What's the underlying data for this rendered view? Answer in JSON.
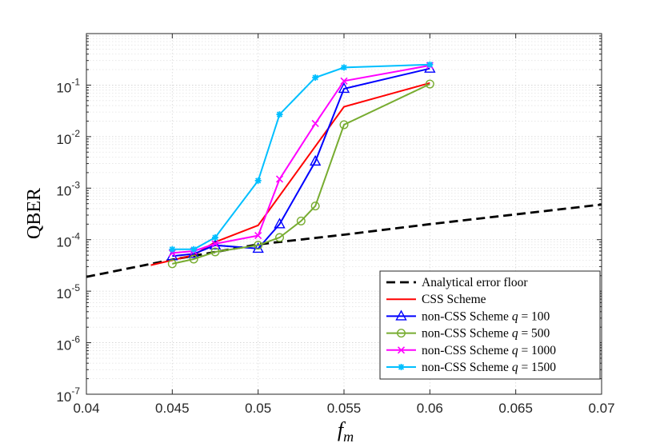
{
  "chart_data": {
    "type": "line",
    "xlabel": "f_m",
    "ylabel": "QBER",
    "xlim": [
      0.04,
      0.07
    ],
    "ylim": [
      1e-07,
      1
    ],
    "yscale": "log",
    "grid": "major and minor, dotted",
    "legend_position": "bottom-right",
    "x_tick_labels": [
      "0.04",
      "0.045",
      "0.05",
      "0.055",
      "0.06",
      "0.065",
      "0.07"
    ],
    "y_tick_labels": [
      {
        "base": "10",
        "exp": "-7"
      },
      {
        "base": "10",
        "exp": "-6"
      },
      {
        "base": "10",
        "exp": "-5"
      },
      {
        "base": "10",
        "exp": "-4"
      },
      {
        "base": "10",
        "exp": "-3"
      },
      {
        "base": "10",
        "exp": "-2"
      },
      {
        "base": "10",
        "exp": "-1"
      }
    ],
    "series": [
      {
        "name": "Analytical error floor",
        "color": "#000000",
        "style": "dashed",
        "marker": "none",
        "x": [
          0.04,
          0.045,
          0.05,
          0.055,
          0.06,
          0.065,
          0.07
        ],
        "y": [
          1.9e-05,
          4.1e-05,
          8.1e-05,
          0.000125,
          0.0002,
          0.00031,
          0.00048
        ]
      },
      {
        "name": "CSS Scheme",
        "color": "#ff0000",
        "style": "solid",
        "marker": "none",
        "x": [
          0.04375,
          0.045,
          0.04625,
          0.0475,
          0.05,
          0.055,
          0.06
        ],
        "y": [
          3.2e-05,
          4e-05,
          5e-05,
          9e-05,
          0.00019,
          0.038,
          0.11
        ]
      },
      {
        "name": "non-CSS Scheme q = 100",
        "color": "#0000ff",
        "style": "solid",
        "marker": "triangle",
        "x": [
          0.045,
          0.04625,
          0.0475,
          0.05,
          0.05125,
          0.05333,
          0.055,
          0.06
        ],
        "y": [
          4.8e-05,
          5.3e-05,
          7.8e-05,
          6.7e-05,
          0.0002,
          0.0033,
          0.085,
          0.21
        ]
      },
      {
        "name": "non-CSS Scheme q = 500",
        "color": "#77ac30",
        "style": "solid",
        "marker": "circle",
        "x": [
          0.045,
          0.04625,
          0.0475,
          0.05,
          0.05125,
          0.0525,
          0.05333,
          0.055,
          0.06
        ],
        "y": [
          3.4e-05,
          4.2e-05,
          5.8e-05,
          7.8e-05,
          0.00011,
          0.00023,
          0.00045,
          0.017,
          0.105
        ]
      },
      {
        "name": "non-CSS Scheme q = 1000",
        "color": "#ff00ff",
        "style": "solid",
        "marker": "x",
        "x": [
          0.045,
          0.04625,
          0.0475,
          0.05,
          0.05125,
          0.05333,
          0.055,
          0.06
        ],
        "y": [
          5.5e-05,
          6e-05,
          8.3e-05,
          0.00012,
          0.0015,
          0.018,
          0.12,
          0.24
        ]
      },
      {
        "name": "non-CSS Scheme q = 1500",
        "color": "#00bfff",
        "style": "solid",
        "marker": "asterisk",
        "x": [
          0.045,
          0.04625,
          0.0475,
          0.05,
          0.05125,
          0.05333,
          0.055,
          0.06
        ],
        "y": [
          6.5e-05,
          6.5e-05,
          0.00011,
          0.0014,
          0.027,
          0.14,
          0.22,
          0.25
        ]
      }
    ],
    "legend": [
      {
        "text": "Analytical error floor",
        "q": ""
      },
      {
        "text": "CSS Scheme",
        "q": ""
      },
      {
        "text": "non-CSS Scheme ",
        "q": "q",
        "eq": " = 100"
      },
      {
        "text": "non-CSS Scheme ",
        "q": "q",
        "eq": " = 500"
      },
      {
        "text": "non-CSS Scheme ",
        "q": "q",
        "eq": " = 1000"
      },
      {
        "text": "non-CSS Scheme ",
        "q": "q",
        "eq": " = 1500"
      }
    ]
  }
}
